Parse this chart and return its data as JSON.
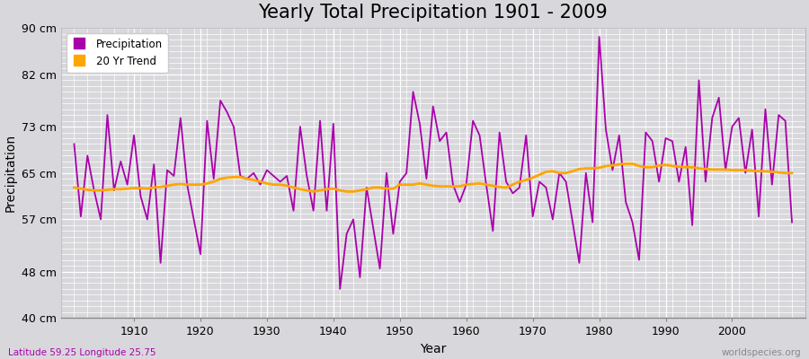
{
  "title": "Yearly Total Precipitation 1901 - 2009",
  "xlabel": "Year",
  "ylabel": "Precipitation",
  "subtitle": "Latitude 59.25 Longitude 25.75",
  "watermark": "worldspecies.org",
  "years": [
    1901,
    1902,
    1903,
    1904,
    1905,
    1906,
    1907,
    1908,
    1909,
    1910,
    1911,
    1912,
    1913,
    1914,
    1915,
    1916,
    1917,
    1918,
    1919,
    1920,
    1921,
    1922,
    1923,
    1924,
    1925,
    1926,
    1927,
    1928,
    1929,
    1930,
    1931,
    1932,
    1933,
    1934,
    1935,
    1936,
    1937,
    1938,
    1939,
    1940,
    1941,
    1942,
    1943,
    1944,
    1945,
    1946,
    1947,
    1948,
    1949,
    1950,
    1951,
    1952,
    1953,
    1954,
    1955,
    1956,
    1957,
    1958,
    1959,
    1960,
    1961,
    1962,
    1963,
    1964,
    1965,
    1966,
    1967,
    1968,
    1969,
    1970,
    1971,
    1972,
    1973,
    1974,
    1975,
    1976,
    1977,
    1978,
    1979,
    1980,
    1981,
    1982,
    1983,
    1984,
    1985,
    1986,
    1987,
    1988,
    1989,
    1990,
    1991,
    1992,
    1993,
    1994,
    1995,
    1996,
    1997,
    1998,
    1999,
    2000,
    2001,
    2002,
    2003,
    2004,
    2005,
    2006,
    2007,
    2008,
    2009
  ],
  "precipitation": [
    70.0,
    57.5,
    68.0,
    62.0,
    57.0,
    75.0,
    62.0,
    67.0,
    63.0,
    71.5,
    61.0,
    57.0,
    66.5,
    49.5,
    65.5,
    64.5,
    74.5,
    63.0,
    57.0,
    51.0,
    74.0,
    64.0,
    77.5,
    75.5,
    73.0,
    64.5,
    64.0,
    65.0,
    63.0,
    65.5,
    64.5,
    63.5,
    64.5,
    58.5,
    73.0,
    64.5,
    58.5,
    74.0,
    58.5,
    73.5,
    45.0,
    54.5,
    57.0,
    47.0,
    62.5,
    55.5,
    48.5,
    65.0,
    54.5,
    63.5,
    65.0,
    79.0,
    73.5,
    64.0,
    76.5,
    70.5,
    72.0,
    63.0,
    60.0,
    63.0,
    74.0,
    71.5,
    63.0,
    55.0,
    72.0,
    63.5,
    61.5,
    62.5,
    71.5,
    57.5,
    63.5,
    62.5,
    57.0,
    65.0,
    63.5,
    56.5,
    49.5,
    65.0,
    56.5,
    88.5,
    72.5,
    65.5,
    71.5,
    60.0,
    56.5,
    50.0,
    72.0,
    70.5,
    63.5,
    71.0,
    70.5,
    63.5,
    69.5,
    56.0,
    81.0,
    63.5,
    74.5,
    78.0,
    65.5,
    73.0,
    74.5,
    65.0,
    72.5,
    57.5,
    76.0,
    63.0,
    75.0,
    74.0,
    56.5
  ],
  "trend": [
    62.5,
    62.3,
    62.1,
    62.0,
    62.0,
    62.1,
    62.2,
    62.2,
    62.3,
    62.4,
    62.4,
    62.3,
    62.5,
    62.6,
    62.8,
    63.0,
    63.1,
    63.0,
    63.0,
    63.0,
    63.2,
    63.5,
    64.0,
    64.2,
    64.3,
    64.3,
    64.0,
    63.8,
    63.5,
    63.2,
    63.0,
    63.0,
    62.8,
    62.5,
    62.2,
    62.0,
    61.8,
    62.0,
    62.2,
    62.3,
    62.0,
    61.8,
    61.8,
    62.0,
    62.2,
    62.5,
    62.5,
    62.3,
    62.3,
    63.0,
    63.0,
    63.0,
    63.2,
    63.0,
    62.8,
    62.7,
    62.7,
    62.7,
    62.7,
    63.0,
    63.1,
    63.2,
    63.0,
    62.8,
    62.6,
    62.5,
    63.0,
    63.5,
    63.8,
    64.2,
    64.7,
    65.2,
    65.3,
    65.0,
    65.0,
    65.3,
    65.7,
    65.8,
    65.8,
    65.9,
    66.2,
    66.3,
    66.5,
    66.6,
    66.6,
    66.2,
    66.0,
    66.0,
    66.3,
    66.4,
    66.2,
    66.1,
    66.0,
    66.0,
    65.8,
    65.7,
    65.6,
    65.6,
    65.6,
    65.5,
    65.5,
    65.5,
    65.4,
    65.3,
    65.3,
    65.2,
    65.1,
    65.0,
    65.0
  ],
  "precip_color": "#AA00AA",
  "trend_color": "#FFA500",
  "bg_color": "#D8D8DC",
  "plot_bg_color": "#D8D8DC",
  "grid_color": "#FFFFFF",
  "ylim": [
    40,
    90
  ],
  "yticks": [
    40,
    48,
    57,
    65,
    73,
    82,
    90
  ],
  "ytick_labels": [
    "40 cm",
    "48 cm",
    "57 cm",
    "65 cm",
    "73 cm",
    "82 cm",
    "90 cm"
  ],
  "xlim": [
    1899,
    2011
  ],
  "major_xticks": [
    1910,
    1920,
    1930,
    1940,
    1950,
    1960,
    1970,
    1980,
    1990,
    2000
  ],
  "title_fontsize": 15,
  "axis_label_fontsize": 10,
  "tick_fontsize": 9,
  "subtitle_color": "#AA00AA",
  "watermark_color": "#888888"
}
